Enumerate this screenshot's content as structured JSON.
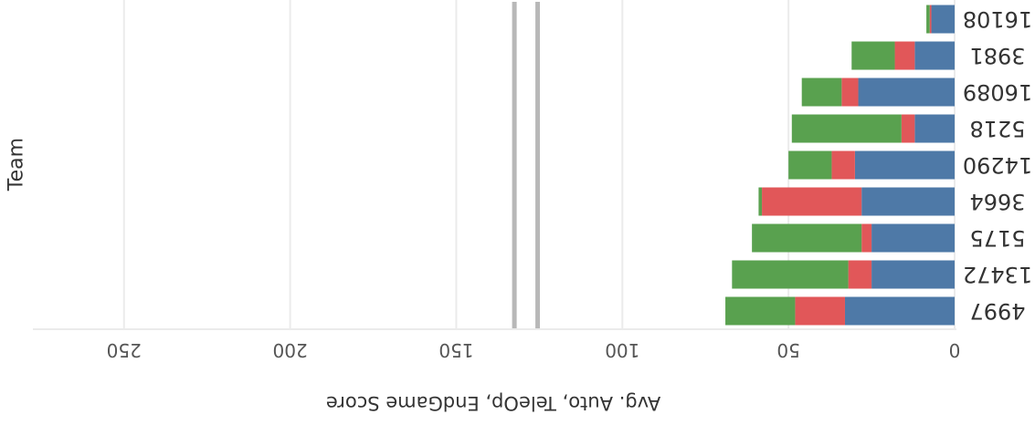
{
  "chart_data": {
    "type": "bar",
    "orientation": "horizontal-stacked",
    "rendering": "image displayed rotated 180 degrees",
    "title": "",
    "xlabel": "Avg. Auto, TeleOp, EndGame Score",
    "ylabel": "Team",
    "xlim": [
      0,
      280
    ],
    "x_ticks": [
      "0",
      "50",
      "100",
      "150",
      "200",
      "250"
    ],
    "grid": true,
    "legend": "none",
    "categories": [
      "4997",
      "13472",
      "5175",
      "3664",
      "14290",
      "5218",
      "16089",
      "3981",
      "16108"
    ],
    "series": [
      {
        "color": "#4e79a7",
        "values": [
          33,
          25,
          25,
          28,
          30,
          12,
          29,
          12,
          7
        ]
      },
      {
        "color": "#e15759",
        "values": [
          15,
          7,
          3,
          30,
          7,
          4,
          5,
          6,
          0.5
        ]
      },
      {
        "color": "#59a14f",
        "values": [
          21,
          35,
          33,
          1,
          13,
          33,
          12,
          13,
          1
        ]
      }
    ],
    "reference_lines": [
      {
        "x": 125.5,
        "color": "#b8b8b8"
      },
      {
        "x": 132.5,
        "color": "#b8b8b8"
      }
    ]
  }
}
